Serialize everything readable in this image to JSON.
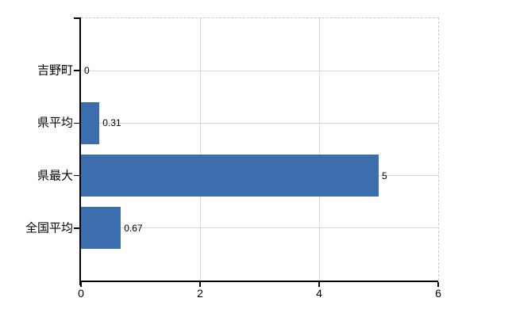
{
  "chart_data": {
    "type": "bar",
    "orientation": "horizontal",
    "title": "",
    "categories": [
      "吉野町",
      "県平均",
      "県最大",
      "全国平均"
    ],
    "values": [
      0,
      0.31,
      5,
      0.67
    ],
    "value_labels": [
      "0",
      "0.31",
      "5",
      "0.67"
    ],
    "xlim": [
      0,
      6
    ],
    "x_tick_values": [
      0,
      2,
      4,
      6
    ],
    "x_tick_labels": [
      "0",
      "2",
      "4",
      "6"
    ],
    "grid": true,
    "legend": "none",
    "colors": {
      "bar": "#3c6dad",
      "axis": "#000000",
      "gridline": "#d4dad4",
      "dashed_border": "#c9c9c9",
      "text": "#000000",
      "background": "#ffffff"
    }
  }
}
